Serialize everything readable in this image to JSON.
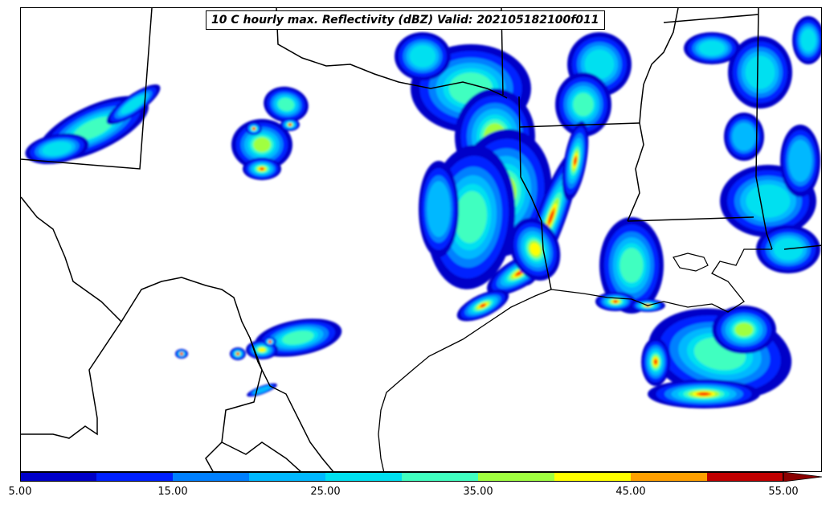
{
  "title": "10 C hourly max. Reflectivity (dBZ) Valid: 202105182100f011",
  "colorbar": {
    "colors": [
      "#0000c8",
      "#0020ff",
      "#0080ff",
      "#00b8ff",
      "#00e0f0",
      "#40ffc0",
      "#a0ff40",
      "#ffff00",
      "#ffa000",
      "#ff4000",
      "#c00000"
    ],
    "extend_color": "#8b0000",
    "min": 5,
    "max": 55,
    "step": 5,
    "tick_labels": [
      "5.00",
      "15.00",
      "25.00",
      "35.00",
      "45.00",
      "55.00"
    ],
    "tick_values": [
      5,
      15,
      25,
      35,
      45,
      55
    ]
  }
}
